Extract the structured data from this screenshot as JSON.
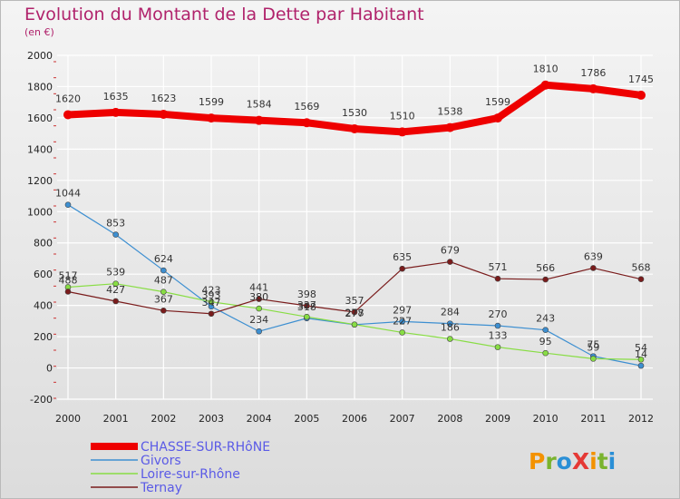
{
  "chart_data": {
    "type": "line",
    "title": "Evolution du Montant de la Dette par Habitant",
    "subtitle": "(en €)",
    "xlabel": "",
    "ylabel": "",
    "ylim": [
      -200,
      2000
    ],
    "yticks": [
      -200,
      0,
      200,
      400,
      600,
      800,
      1000,
      1200,
      1400,
      1600,
      1800,
      2000
    ],
    "categories": [
      "2000",
      "2001",
      "2002",
      "2003",
      "2004",
      "2005",
      "2006",
      "2007",
      "2008",
      "2009",
      "2010",
      "2011",
      "2012"
    ],
    "legend_position": "bottom-left",
    "series": [
      {
        "name": "CHASSE-SUR-RHôNE",
        "color": "#ee0000",
        "values": [
          1620,
          1635,
          1623,
          1599,
          1584,
          1569,
          1530,
          1510,
          1538,
          1599,
          1810,
          1786,
          1745
        ]
      },
      {
        "name": "Givors",
        "color": "#3d8fd1",
        "values": [
          1044,
          853,
          624,
          393,
          234,
          318,
          277,
          297,
          284,
          270,
          243,
          75,
          14
        ]
      },
      {
        "name": "Loire-sur-Rhône",
        "color": "#88dd44",
        "values": [
          517,
          539,
          487,
          423,
          380,
          327,
          278,
          227,
          186,
          133,
          95,
          59,
          54
        ]
      },
      {
        "name": "Ternay",
        "color": "#7a1c1c",
        "values": [
          488,
          427,
          367,
          347,
          441,
          398,
          357,
          635,
          679,
          571,
          566,
          639,
          568
        ]
      }
    ]
  },
  "brand": {
    "logo_text": "ProXiti"
  }
}
